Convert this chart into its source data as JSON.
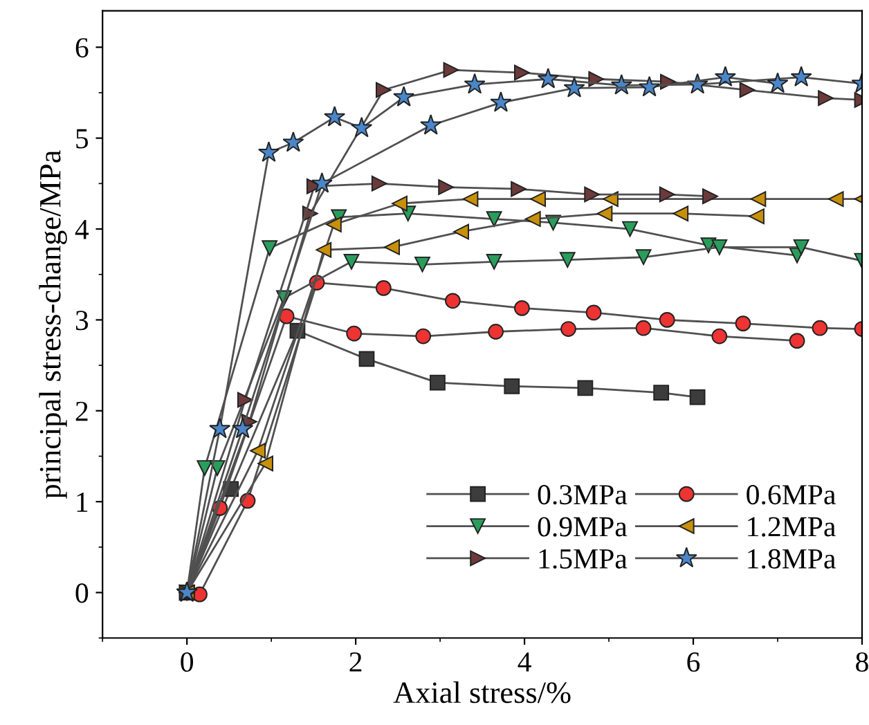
{
  "chart_data": {
    "type": "line",
    "xlabel": "Axial stress/%",
    "ylabel": "principal stress-change/MPa",
    "xlim": [
      -1,
      8
    ],
    "ylim": [
      -0.5,
      6.4
    ],
    "xticks": [
      0,
      2,
      4,
      6,
      8
    ],
    "yticks": [
      0,
      1,
      2,
      3,
      4,
      5,
      6
    ],
    "grid": false,
    "legend": "bottom right",
    "series": [
      {
        "name": "0.3MPa",
        "color": "#3c3c3c",
        "marker": "square",
        "x": [
          0,
          0.52,
          1.31,
          2.13,
          2.97,
          3.85,
          4.72,
          5.62,
          6.05
        ],
        "values": [
          0,
          1.14,
          2.88,
          2.57,
          2.31,
          2.27,
          2.25,
          2.2,
          2.15
        ]
      },
      {
        "name": "0.6MPa",
        "color": "#ee3333",
        "marker": "circle",
        "x": [
          0.15,
          0.72,
          1.54,
          2.33,
          3.15,
          3.97,
          4.82,
          5.69,
          6.59,
          7.5,
          8
        ],
        "values": [
          -0.02,
          1.01,
          3.41,
          3.35,
          3.21,
          3.13,
          3.08,
          3.0,
          2.96,
          2.91,
          2.9
        ]
      },
      {
        "color": "#ee3333",
        "marker": "circle",
        "x": [
          0,
          0.39,
          1.18,
          1.98,
          2.8,
          3.66,
          4.52,
          5.41,
          6.31,
          7.23
        ],
        "values": [
          0,
          0.93,
          3.04,
          2.85,
          2.82,
          2.87,
          2.9,
          2.91,
          2.82,
          2.77
        ]
      },
      {
        "name": "0.9MPa",
        "color": "#2a9d5c",
        "marker": "triangle-down",
        "x": [
          0,
          0.21,
          0.98,
          1.8,
          2.62,
          3.64,
          4.34,
          5.25,
          6.18,
          7.23
        ],
        "values": [
          0,
          1.37,
          3.79,
          4.13,
          4.17,
          4.11,
          4.07,
          4.0,
          3.82,
          3.71
        ]
      },
      {
        "color": "#2a9d5c",
        "marker": "triangle-down",
        "x": [
          0,
          0.36,
          1.15,
          1.95,
          2.79,
          3.64,
          4.51,
          5.41,
          6.31,
          7.28,
          8
        ],
        "values": [
          0,
          1.37,
          3.24,
          3.64,
          3.61,
          3.64,
          3.66,
          3.69,
          3.8,
          3.8,
          3.65
        ]
      },
      {
        "name": "1.2MPa",
        "color": "#c8900a",
        "marker": "triangle-left",
        "x": [
          0,
          0.84,
          1.74,
          2.52,
          3.36,
          4.16,
          5.02,
          6.77,
          7.69,
          8
        ],
        "values": [
          0,
          1.56,
          4.05,
          4.28,
          4.33,
          4.33,
          4.33,
          4.33,
          4.33,
          4.33
        ]
      },
      {
        "color": "#c8900a",
        "marker": "triangle-left",
        "x": [
          0,
          0.93,
          1.62,
          2.43,
          3.25,
          4.1,
          4.95,
          5.85,
          6.75
        ],
        "values": [
          0,
          1.42,
          3.77,
          3.8,
          3.97,
          4.11,
          4.17,
          4.17,
          4.14
        ]
      },
      {
        "name": "1.5MPa",
        "color": "#6b3a3a",
        "marker": "triangle-right",
        "x": [
          0,
          0.74,
          1.46,
          2.33,
          3.13,
          3.97,
          4.85,
          5.7,
          6.64,
          7.57,
          8
        ],
        "values": [
          0,
          1.88,
          4.17,
          5.53,
          5.75,
          5.72,
          5.65,
          5.62,
          5.53,
          5.44,
          5.42
        ]
      },
      {
        "color": "#6b3a3a",
        "marker": "triangle-right",
        "x": [
          0,
          0.69,
          1.51,
          2.28,
          3.07,
          3.93,
          4.8,
          5.69,
          6.2
        ],
        "values": [
          0,
          2.12,
          4.47,
          4.5,
          4.46,
          4.44,
          4.38,
          4.38,
          4.36
        ]
      },
      {
        "name": "1.8MPa",
        "color": "#4a86c8",
        "marker": "star",
        "x": [
          0,
          0.39,
          0.97,
          1.26,
          1.75,
          2.07,
          2.57,
          3.41,
          4.28,
          5.15,
          6.05,
          7.28,
          8
        ],
        "values": [
          0,
          1.8,
          4.84,
          4.95,
          5.23,
          5.11,
          5.45,
          5.59,
          5.65,
          5.58,
          5.59,
          5.67,
          5.6
        ]
      },
      {
        "color": "#4a86c8",
        "marker": "star",
        "x": [
          0,
          0.66,
          1.6,
          2.89,
          3.72,
          4.59,
          5.48,
          6.38,
          7.0
        ],
        "values": [
          0,
          1.8,
          4.5,
          5.14,
          5.39,
          5.55,
          5.56,
          5.67,
          5.6
        ]
      }
    ]
  }
}
